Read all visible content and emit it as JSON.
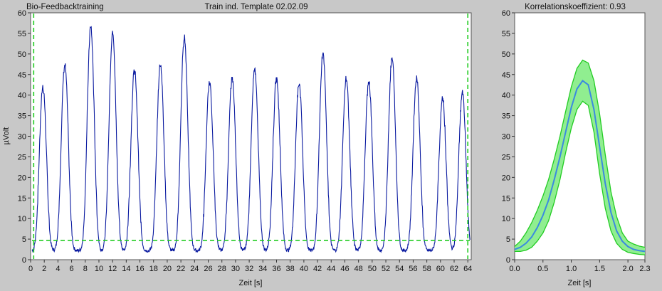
{
  "header": {
    "left_title": "Bio-Feedbacktraining",
    "center_title": "Train ind. Template 02.02.09",
    "right_title": "Korrelationskoeffizient: 0.93"
  },
  "chart_data": [
    {
      "type": "line",
      "title": "Train ind. Template 02.02.09",
      "xlabel": "Zeit [s]",
      "ylabel": "µVolt",
      "xlim": [
        0,
        64.5
      ],
      "ylim": [
        0,
        60
      ],
      "x_ticks": [
        0,
        2,
        4,
        6,
        8,
        10,
        12,
        14,
        16,
        18,
        20,
        22,
        24,
        26,
        28,
        30,
        32,
        34,
        36,
        38,
        40,
        42,
        44,
        46,
        48,
        50,
        52,
        54,
        56,
        58,
        60,
        62,
        64
      ],
      "y_ticks": [
        0,
        5,
        10,
        15,
        20,
        25,
        30,
        35,
        40,
        45,
        50,
        55,
        60
      ],
      "grid": false,
      "threshold": {
        "y": 4.7,
        "color": "#22cc22",
        "style": "dashed"
      },
      "markers": [
        {
          "x": 0.45
        },
        {
          "x": 64.0
        }
      ],
      "series": [
        {
          "color": "#0a1aa0",
          "baseline": 2.2,
          "peaks": [
            {
              "t": 1.8,
              "amp": 42
            },
            {
              "t": 5.0,
              "amp": 47.5
            },
            {
              "t": 8.8,
              "amp": 56.5
            },
            {
              "t": 12.0,
              "amp": 55
            },
            {
              "t": 15.2,
              "amp": 46
            },
            {
              "t": 19.0,
              "amp": 47.5
            },
            {
              "t": 22.5,
              "amp": 54
            },
            {
              "t": 26.2,
              "amp": 43
            },
            {
              "t": 29.5,
              "amp": 44
            },
            {
              "t": 32.8,
              "amp": 46
            },
            {
              "t": 36.0,
              "amp": 44
            },
            {
              "t": 39.3,
              "amp": 43
            },
            {
              "t": 42.8,
              "amp": 50.5
            },
            {
              "t": 46.2,
              "amp": 44
            },
            {
              "t": 49.5,
              "amp": 43.5
            },
            {
              "t": 52.9,
              "amp": 49
            },
            {
              "t": 56.5,
              "amp": 44
            },
            {
              "t": 60.3,
              "amp": 39
            },
            {
              "t": 63.2,
              "amp": 40.5
            }
          ]
        }
      ]
    },
    {
      "type": "area",
      "title": "Korrelationskoeffizient: 0.93",
      "xlabel": "Zeit [s]",
      "ylabel": "",
      "xlim": [
        0,
        2.3
      ],
      "ylim": [
        0,
        60
      ],
      "x_ticks": [
        0.0,
        0.5,
        1.0,
        1.5,
        2.0,
        2.3
      ],
      "x_tick_labels": [
        "0.0",
        "0.5",
        "1.0",
        "1.5",
        "2.0",
        "2.3"
      ],
      "y_ticks": [
        0,
        5,
        10,
        15,
        20,
        25,
        30,
        35,
        40,
        45,
        50,
        55,
        60
      ],
      "grid": false,
      "series": [
        {
          "role": "mean",
          "color": "#3a8ae0",
          "x": [
            0.0,
            0.1,
            0.2,
            0.3,
            0.4,
            0.5,
            0.6,
            0.7,
            0.8,
            0.9,
            1.0,
            1.1,
            1.2,
            1.3,
            1.4,
            1.5,
            1.6,
            1.7,
            1.8,
            1.9,
            2.0,
            2.1,
            2.2,
            2.3
          ],
          "y": [
            2.5,
            3.0,
            4.0,
            5.5,
            7.8,
            10.8,
            14.5,
            19.5,
            25.0,
            31.0,
            37.0,
            41.5,
            43.5,
            42.5,
            36.5,
            27.5,
            18.5,
            11.5,
            7.0,
            4.5,
            3.2,
            2.5,
            2.2,
            2.0
          ]
        },
        {
          "role": "band-upper",
          "color": "#22cc22",
          "x": [
            0.0,
            0.1,
            0.2,
            0.3,
            0.4,
            0.5,
            0.6,
            0.7,
            0.8,
            0.9,
            1.0,
            1.1,
            1.2,
            1.3,
            1.4,
            1.5,
            1.6,
            1.7,
            1.8,
            1.9,
            2.0,
            2.1,
            2.2,
            2.3
          ],
          "y": [
            3.2,
            4.5,
            6.5,
            9.0,
            12.0,
            15.5,
            19.5,
            24.5,
            30.0,
            36.0,
            42.0,
            46.5,
            48.5,
            47.8,
            43.5,
            35.5,
            25.5,
            16.5,
            10.5,
            6.5,
            4.5,
            3.8,
            3.3,
            3.0
          ]
        },
        {
          "role": "band-lower",
          "color": "#22cc22",
          "x": [
            0.0,
            0.1,
            0.2,
            0.3,
            0.4,
            0.5,
            0.6,
            0.7,
            0.8,
            0.9,
            1.0,
            1.1,
            1.2,
            1.3,
            1.4,
            1.5,
            1.6,
            1.7,
            1.8,
            1.9,
            2.0,
            2.1,
            2.2,
            2.3
          ],
          "y": [
            2.0,
            2.0,
            2.3,
            3.0,
            4.5,
            6.5,
            9.5,
            14.0,
            19.5,
            26.0,
            32.0,
            36.5,
            38.5,
            37.5,
            31.0,
            21.0,
            12.5,
            7.0,
            4.0,
            2.5,
            1.8,
            1.5,
            1.3,
            1.2
          ]
        }
      ]
    }
  ]
}
